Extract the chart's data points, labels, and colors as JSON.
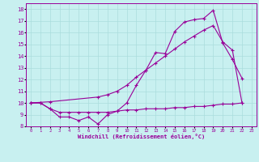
{
  "title": "",
  "xlabel": "Windchill (Refroidissement éolien,°C)",
  "bg_color": "#c8f0f0",
  "line_color": "#990099",
  "grid_color": "#aadddd",
  "xlim": [
    -0.5,
    23.5
  ],
  "ylim": [
    8,
    18.5
  ],
  "xticks": [
    0,
    1,
    2,
    3,
    4,
    5,
    6,
    7,
    8,
    9,
    10,
    11,
    12,
    13,
    14,
    15,
    16,
    17,
    18,
    19,
    20,
    21,
    22,
    23
  ],
  "yticks": [
    8,
    9,
    10,
    11,
    12,
    13,
    14,
    15,
    16,
    17,
    18
  ],
  "line1_x": [
    0,
    1,
    2,
    3,
    4,
    5,
    6,
    7,
    8,
    9,
    10,
    11,
    12,
    13,
    14,
    15,
    16,
    17,
    18,
    19,
    20,
    21,
    22
  ],
  "line1_y": [
    10.0,
    10.0,
    9.5,
    8.8,
    8.8,
    8.5,
    8.8,
    8.2,
    9.0,
    9.3,
    10.0,
    11.5,
    12.8,
    14.3,
    14.2,
    16.1,
    16.9,
    17.1,
    17.2,
    17.9,
    15.1,
    13.7,
    12.1
  ],
  "line2_x": [
    0,
    2,
    7,
    8,
    9,
    10,
    11,
    12,
    13,
    14,
    15,
    16,
    17,
    18,
    19,
    20,
    21,
    22
  ],
  "line2_y": [
    10.0,
    10.1,
    10.5,
    10.7,
    11.0,
    11.5,
    12.2,
    12.8,
    13.4,
    14.0,
    14.6,
    15.2,
    15.7,
    16.2,
    16.6,
    15.2,
    14.5,
    10.0
  ],
  "line3_x": [
    0,
    1,
    2,
    3,
    4,
    5,
    6,
    7,
    8,
    9,
    10,
    11,
    12,
    13,
    14,
    15,
    16,
    17,
    18,
    19,
    20,
    21,
    22
  ],
  "line3_y": [
    10.0,
    10.0,
    9.5,
    9.2,
    9.2,
    9.2,
    9.2,
    9.2,
    9.2,
    9.3,
    9.4,
    9.4,
    9.5,
    9.5,
    9.5,
    9.6,
    9.6,
    9.7,
    9.7,
    9.8,
    9.9,
    9.9,
    10.0
  ]
}
